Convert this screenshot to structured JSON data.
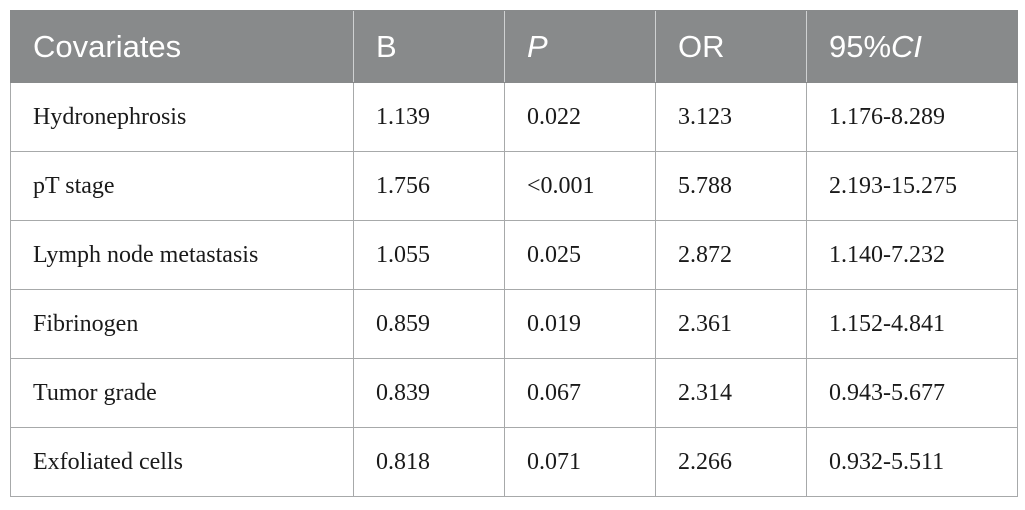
{
  "table": {
    "headers": [
      {
        "label": "Covariates",
        "italic": false
      },
      {
        "label": "B",
        "italic": false
      },
      {
        "label": "P",
        "italic": true
      },
      {
        "label": "OR",
        "italic": false
      },
      {
        "label_prefix": "95%",
        "label_italic": "CI"
      }
    ],
    "rows": [
      [
        "Hydronephrosis",
        "1.139",
        "0.022",
        "3.123",
        "1.176-8.289"
      ],
      [
        "pT stage",
        "1.756",
        "<0.001",
        "5.788",
        "2.193-15.275"
      ],
      [
        "Lymph node metastasis",
        "1.055",
        "0.025",
        "2.872",
        "1.140-7.232"
      ],
      [
        "Fibrinogen",
        "0.859",
        "0.019",
        "2.361",
        "1.152-4.841"
      ],
      [
        "Tumor grade",
        "0.839",
        "0.067",
        "2.314",
        "0.943-5.677"
      ],
      [
        "Exfoliated cells",
        "0.818",
        "0.071",
        "2.266",
        "0.932-5.511"
      ]
    ]
  },
  "colors": {
    "header_bg": "#888a8b",
    "header_text": "#ffffff",
    "border": "#a7a9aa",
    "cell_text": "#1a1a1a"
  }
}
